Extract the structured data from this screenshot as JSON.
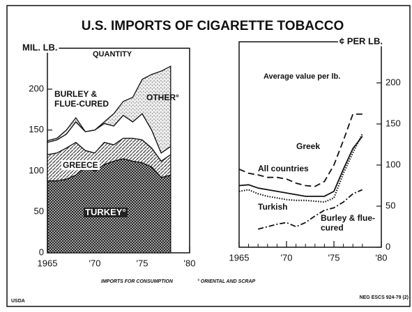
{
  "title": "U.S. IMPORTS OF CIGARETTE TOBACCO",
  "chart_data": [
    {
      "type": "stacked_area",
      "ylabel": "MIL. LB.",
      "subtitle": "QUANTITY",
      "x": [
        1965,
        1966,
        1967,
        1968,
        1969,
        1970,
        1971,
        1972,
        1973,
        1974,
        1975,
        1976,
        1977,
        1978
      ],
      "series": [
        {
          "name": "TURKEY°",
          "color": "#222222",
          "values": [
            88,
            88,
            90,
            95,
            105,
            100,
            108,
            112,
            115,
            112,
            110,
            105,
            92,
            95
          ]
        },
        {
          "name": "GREECE",
          "color": "#555555",
          "values": [
            32,
            34,
            38,
            40,
            20,
            22,
            27,
            20,
            25,
            28,
            28,
            23,
            20,
            25
          ]
        },
        {
          "name": "BURLEY & FLUE-CURED",
          "color": "#ffffff",
          "values": [
            15,
            16,
            17,
            25,
            23,
            28,
            23,
            23,
            28,
            20,
            32,
            22,
            10,
            10
          ]
        },
        {
          "name": "OTHER°",
          "color": "#777777",
          "values": [
            2,
            2,
            5,
            5,
            0,
            0,
            2,
            15,
            17,
            30,
            42,
            68,
            100,
            98
          ]
        }
      ],
      "xlim": [
        1965,
        1980
      ],
      "xticks": [
        1965,
        {
          "value": 1970,
          "label": "'70"
        },
        {
          "value": 1975,
          "label": "'75"
        },
        {
          "value": 1980,
          "label": "'80"
        }
      ],
      "ylim": [
        0,
        250
      ],
      "yticks": [
        0,
        50,
        100,
        150,
        200
      ]
    },
    {
      "type": "line",
      "ylabel": "¢ PER LB.",
      "subtitle": "Average value per lb.",
      "x": [
        1965,
        1966,
        1967,
        1968,
        1969,
        1970,
        1971,
        1972,
        1973,
        1974,
        1975,
        1976,
        1977,
        1978
      ],
      "series": [
        {
          "name": "Greek",
          "color": "#111111",
          "style": "dashed",
          "values": [
            95,
            90,
            88,
            85,
            85,
            83,
            78,
            75,
            74,
            80,
            100,
            130,
            162,
            162
          ]
        },
        {
          "name": "All countries",
          "color": "#111111",
          "style": "solid",
          "values": [
            75,
            76,
            72,
            70,
            68,
            66,
            64,
            62,
            62,
            62,
            68,
            95,
            120,
            135
          ]
        },
        {
          "name": "Turkish",
          "color": "#111111",
          "style": "dotted",
          "values": [
            68,
            70,
            65,
            62,
            60,
            58,
            57,
            57,
            56,
            55,
            60,
            90,
            115,
            138
          ]
        },
        {
          "name": "Burley & flue-cured",
          "color": "#111111",
          "style": "dashdot",
          "values": [
            null,
            null,
            22,
            25,
            28,
            30,
            25,
            30,
            38,
            45,
            48,
            55,
            65,
            70
          ]
        }
      ],
      "xlim": [
        1965,
        1980
      ],
      "xticks": [
        1965,
        {
          "value": 1970,
          "label": "'70"
        },
        {
          "value": 1975,
          "label": "'75"
        },
        {
          "value": 1980,
          "label": "'80"
        }
      ],
      "ylim": [
        0,
        250
      ],
      "yticks": [
        0,
        50,
        100,
        150,
        200
      ],
      "yaxis_side": "right"
    }
  ],
  "footnotes": [
    "IMPORTS FOR CONSUMPTION",
    "° ORIENTAL AND SCRAP"
  ],
  "source": "USDA",
  "neg": "NEG ESCS 924-79 (2)"
}
